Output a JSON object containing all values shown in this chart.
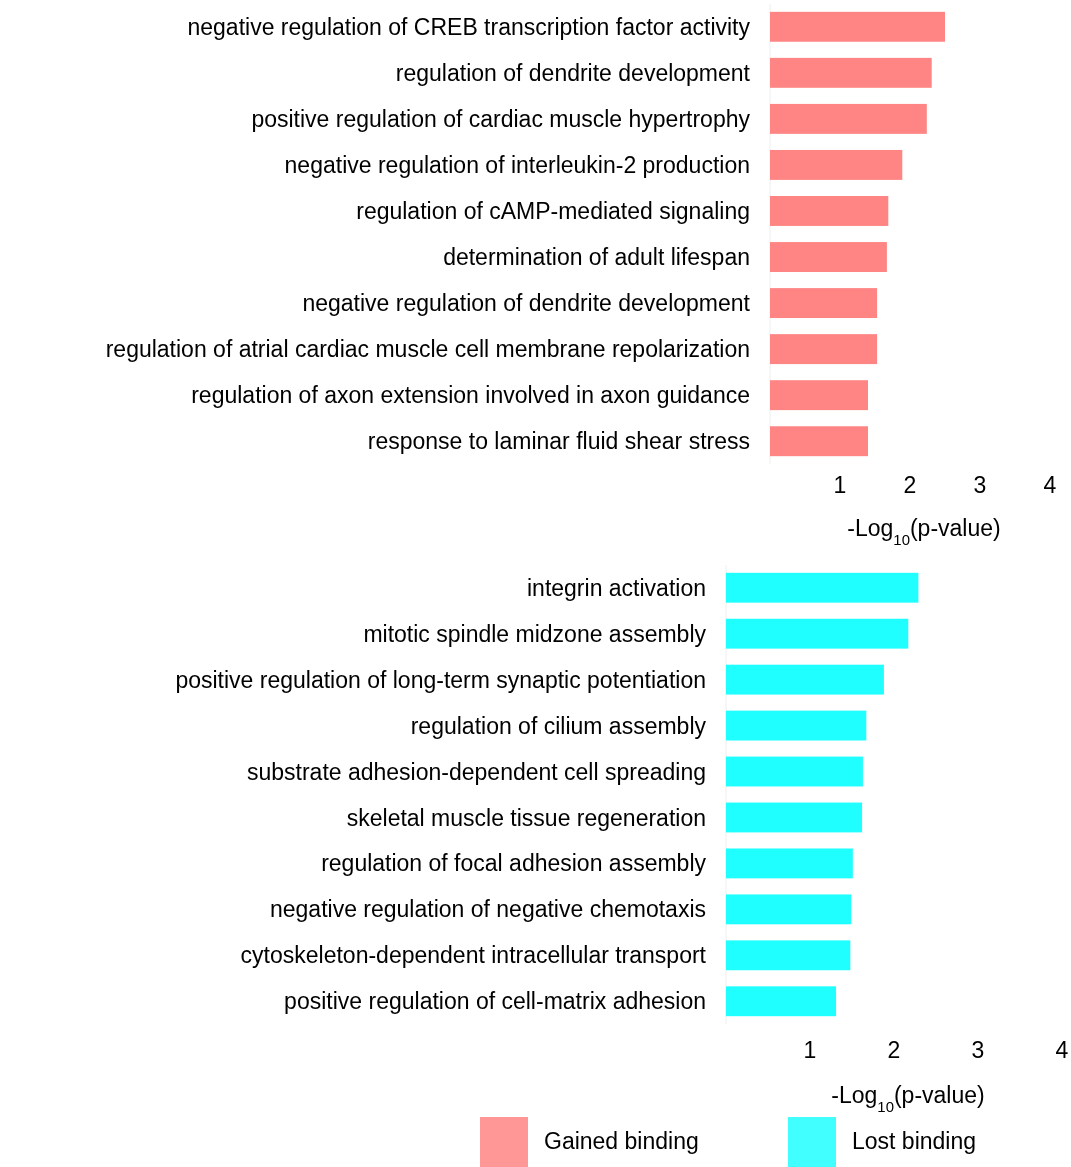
{
  "chart_data": [
    {
      "type": "bar",
      "orientation": "horizontal",
      "xlabel": "-Log$_{10}$(p-value)",
      "categories": [
        "negative regulation of CREB transcription factor activity",
        "regulation of dendrite development",
        "positive regulation of cardiac muscle hypertrophy",
        "negative regulation of interleukin-2 production",
        "regulation of cAMP-mediated signaling",
        "determination of adult lifespan",
        "negative regulation of dendrite development",
        "regulation of atrial cardiac muscle cell membrane repolarization",
        "regulation of axon extension involved in axon guidance",
        "response to laminar fluid shear stress"
      ],
      "series": [
        {
          "name": "Gained binding",
          "color": "#ff8585",
          "values": [
            2.5,
            2.31,
            2.24,
            1.89,
            1.69,
            1.67,
            1.53,
            1.53,
            1.4,
            1.4
          ]
        }
      ],
      "xlim": [
        0,
        4
      ],
      "xticks": [
        1,
        2,
        3,
        4
      ],
      "legend": "bottom",
      "grid": false
    },
    {
      "type": "bar",
      "orientation": "horizontal",
      "xlabel": "-Log$_{10}$(p-value)",
      "categories": [
        "integrin activation",
        "mitotic spindle midzone assembly",
        "positive regulation of long-term synaptic potentiation",
        "regulation of cilium assembly",
        "substrate adhesion-dependent cell spreading",
        "skeletal muscle tissue regeneration",
        "regulation of focal adhesion assembly",
        "negative regulation of negative chemotaxis",
        "cytoskeleton-dependent intracellular transport",
        "positive regulation of cell-matrix adhesion"
      ],
      "series": [
        {
          "name": "Lost binding",
          "color": "#20ffff",
          "values": [
            2.29,
            2.17,
            1.88,
            1.67,
            1.63,
            1.62,
            1.51,
            1.49,
            1.48,
            1.31
          ]
        }
      ],
      "xlim": [
        0,
        4
      ],
      "xticks": [
        1,
        2,
        3,
        4
      ],
      "legend": "bottom",
      "grid": false
    }
  ]
}
